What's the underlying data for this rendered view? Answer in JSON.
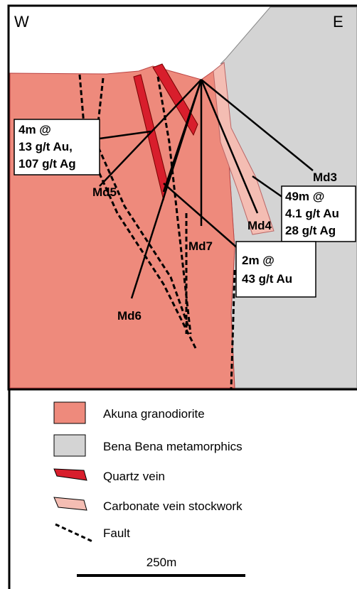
{
  "section": {
    "west": "W",
    "east": "E",
    "holes": [
      "Md3",
      "Md4",
      "Md5",
      "Md6",
      "Md7"
    ],
    "callouts": [
      {
        "lines": [
          "4m @",
          "13 g/t Au,",
          "107 g/t Ag"
        ]
      },
      {
        "lines": [
          "49m @",
          "4.1 g/t Au",
          "28 g/t Ag"
        ]
      },
      {
        "lines": [
          "2m @",
          "43 g/t Au"
        ]
      }
    ]
  },
  "legend": {
    "items": [
      "Akuna granodiorite",
      "Bena Bena metamorphics",
      "Quartz vein",
      "Carbonate vein stockwork",
      "Fault"
    ],
    "scale": "250m"
  }
}
